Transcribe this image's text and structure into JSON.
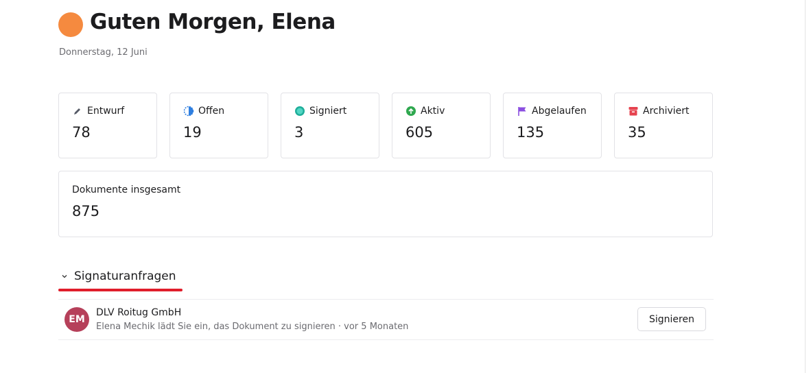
{
  "header": {
    "title": "Guten Morgen, Elena",
    "date": "Donnerstag, 12 Juni"
  },
  "stats": [
    {
      "label": "Entwurf",
      "value": 78
    },
    {
      "label": "Offen",
      "value": 19
    },
    {
      "label": "Signiert",
      "value": 3
    },
    {
      "label": "Aktiv",
      "value": 605
    },
    {
      "label": "Abgelaufen",
      "value": 135
    },
    {
      "label": "Archiviert",
      "value": 35
    }
  ],
  "total": {
    "label": "Dokumente insgesamt",
    "value": 875
  },
  "section": {
    "title": "Signaturanfragen",
    "requests": [
      {
        "initials": "EM",
        "company": "DLV Roitug GmbH",
        "message": "Elena Mechik lädt Sie ein, das Dokument zu signieren · vor 5 Monaten",
        "action": "Signieren"
      }
    ]
  }
}
